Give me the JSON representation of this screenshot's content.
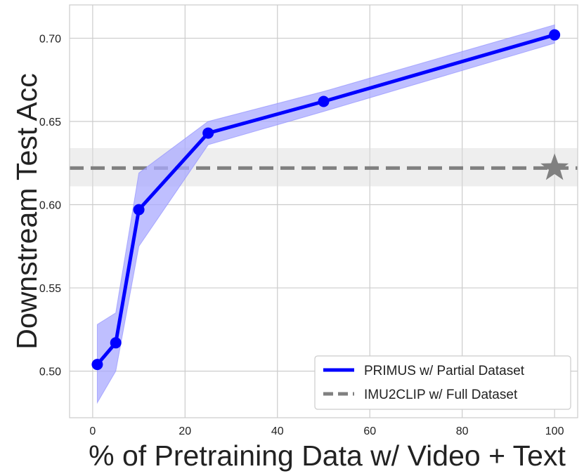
{
  "chart_data": {
    "type": "line",
    "xlabel": "% of Pretraining Data w/ Video + Text",
    "ylabel": "Downstream Test Acc",
    "xlim": [
      -5,
      105
    ],
    "ylim": [
      0.472,
      0.72
    ],
    "x_ticks": [
      0,
      20,
      40,
      60,
      80,
      100
    ],
    "y_ticks": [
      0.5,
      0.55,
      0.6,
      0.65,
      0.7
    ],
    "x_tick_labels": [
      "0",
      "20",
      "40",
      "60",
      "80",
      "100"
    ],
    "y_tick_labels": [
      "0.50",
      "0.55",
      "0.60",
      "0.65",
      "0.70"
    ],
    "grid": true,
    "legend_position": "lower-right",
    "series": [
      {
        "name": "PRIMUS w/ Partial Dataset",
        "style": "solid",
        "marker": "circle",
        "color": "#0000ff",
        "band_color": "#aaaaff",
        "x": [
          1,
          5,
          10,
          25,
          50,
          100
        ],
        "y": [
          0.504,
          0.517,
          0.597,
          0.643,
          0.662,
          0.702
        ],
        "lower": [
          0.481,
          0.5,
          0.575,
          0.636,
          0.656,
          0.697
        ],
        "upper": [
          0.528,
          0.535,
          0.619,
          0.65,
          0.668,
          0.708
        ]
      },
      {
        "name": "IMU2CLIP w/ Full Dataset",
        "style": "dashed",
        "marker": "star",
        "marker_x": 100,
        "color": "#808080",
        "band_color": "#d9d9d9",
        "y": 0.622,
        "lower": 0.611,
        "upper": 0.634
      }
    ]
  }
}
